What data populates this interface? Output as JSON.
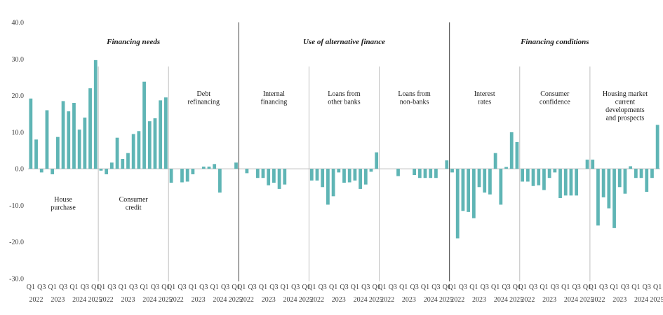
{
  "chart_data": {
    "type": "bar",
    "ylim": [
      -30,
      40
    ],
    "y_ticks": [
      "40.0",
      "30.0",
      "20.0",
      "10.0",
      "0.0",
      "-10.0",
      "-20.0",
      "-30.0"
    ],
    "grid": false,
    "legend": "none",
    "colors": {
      "bar": "#5fb5b5",
      "separator": "#bfbfbf",
      "group_separator": "#404040",
      "baseline": "#bfbfbf"
    },
    "quarter_labels": [
      "Q1",
      "Q3",
      "Q1",
      "Q3",
      "Q1",
      "Q3",
      "Q1"
    ],
    "year_labels": [
      "2022",
      "2023",
      "2024",
      "2025"
    ],
    "groups": [
      {
        "title": "Financing needs",
        "panels": [
          0,
          1,
          2
        ]
      },
      {
        "title": "Use of alternative finance",
        "panels": [
          3,
          4,
          5
        ]
      },
      {
        "title": "Financing conditions",
        "panels": [
          6,
          7,
          8
        ]
      }
    ],
    "panels": [
      {
        "label": [
          "House",
          "purchase"
        ],
        "label_pos": "bottom",
        "values": [
          19.2,
          8.0,
          -1.0,
          16.0,
          -1.5,
          8.7,
          18.5,
          15.7,
          18.0,
          10.7,
          14.0,
          22.0,
          29.7
        ]
      },
      {
        "label": [
          "Consumer",
          "credit"
        ],
        "label_pos": "bottom",
        "values": [
          -0.5,
          -1.5,
          1.7,
          8.5,
          2.7,
          4.3,
          9.5,
          10.3,
          23.8,
          13.0,
          13.8,
          18.7,
          19.5
        ]
      },
      {
        "label": [
          "Debt",
          "refinancing"
        ],
        "label_pos": "top",
        "values": [
          -3.8,
          0.0,
          -3.7,
          -3.5,
          -1.5,
          0.0,
          0.6,
          0.6,
          1.3,
          -6.5,
          0.0,
          0.0,
          1.7
        ]
      },
      {
        "label": [
          "Internal",
          "financing"
        ],
        "label_pos": "top",
        "values": [
          0.0,
          -1.2,
          0.0,
          -2.5,
          -2.5,
          -4.5,
          -3.8,
          -5.5,
          -4.3,
          0.0,
          0.0,
          0.0,
          0.0
        ]
      },
      {
        "label": [
          "Loans from",
          "other banks"
        ],
        "label_pos": "top",
        "values": [
          -3.2,
          -3.2,
          -5.0,
          -9.8,
          -7.5,
          -1.0,
          -3.8,
          -3.7,
          -3.2,
          -5.5,
          -4.3,
          -0.8,
          4.5
        ]
      },
      {
        "label": [
          "Loans from",
          "non-banks"
        ],
        "label_pos": "top",
        "values": [
          0.0,
          0.0,
          0.0,
          -2.0,
          0.0,
          0.0,
          -1.7,
          -2.5,
          -2.5,
          -2.5,
          -2.5,
          0.0,
          2.3
        ]
      },
      {
        "label": [
          "Interest",
          "rates"
        ],
        "label_pos": "top",
        "values": [
          -1.0,
          -19.0,
          -11.5,
          -11.8,
          -13.5,
          -5.0,
          -6.5,
          -7.0,
          4.3,
          -9.8,
          0.5,
          10.0,
          7.3
        ]
      },
      {
        "label": [
          "Consumer",
          "confidence"
        ],
        "label_pos": "top",
        "values": [
          -3.5,
          -3.5,
          -4.7,
          -4.5,
          -5.8,
          -2.5,
          -1.0,
          -8.0,
          -7.3,
          -7.3,
          -7.3,
          0.0,
          2.5
        ]
      },
      {
        "label": [
          "Housing market",
          "current",
          "developments",
          "and prospects"
        ],
        "label_pos": "top",
        "values": [
          2.5,
          -15.5,
          -7.8,
          -10.8,
          -16.2,
          -5.0,
          -6.8,
          0.7,
          -2.5,
          -2.5,
          -6.3,
          -2.5,
          12.0
        ]
      }
    ]
  }
}
